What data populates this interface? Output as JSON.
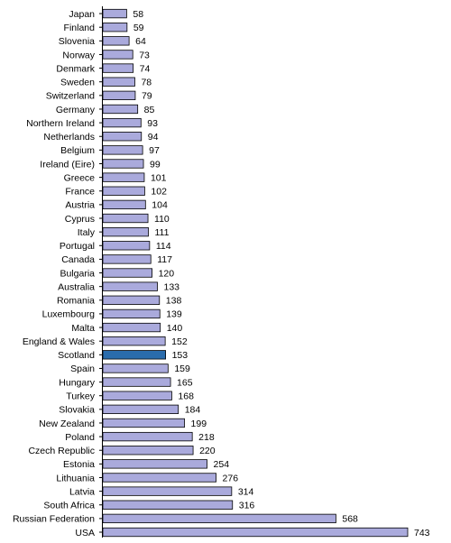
{
  "chart_data": {
    "type": "bar",
    "orientation": "horizontal",
    "categories": [
      "Japan",
      "Finland",
      "Slovenia",
      "Norway",
      "Denmark",
      "Sweden",
      "Switzerland",
      "Germany",
      "Northern Ireland",
      "Netherlands",
      "Belgium",
      "Ireland (Eire)",
      "Greece",
      "France",
      "Austria",
      "Cyprus",
      "Italy",
      "Portugal",
      "Canada",
      "Bulgaria",
      "Australia",
      "Romania",
      "Luxembourg",
      "Malta",
      "England & Wales",
      "Scotland",
      "Spain",
      "Hungary",
      "Turkey",
      "Slovakia",
      "New Zealand",
      "Poland",
      "Czech Republic",
      "Estonia",
      "Lithuania",
      "Latvia",
      "South Africa",
      "Russian Federation",
      "USA"
    ],
    "values": [
      58,
      59,
      64,
      73,
      74,
      78,
      79,
      85,
      93,
      94,
      97,
      99,
      101,
      102,
      104,
      110,
      111,
      114,
      117,
      120,
      133,
      138,
      139,
      140,
      152,
      153,
      159,
      165,
      168,
      184,
      199,
      218,
      220,
      254,
      276,
      314,
      316,
      568,
      743
    ],
    "highlight": "Scotland",
    "colors": {
      "bar": "#aaaadc",
      "highlight": "#2a6cac",
      "outline": "#000000"
    },
    "title": "",
    "xlabel": "",
    "ylabel": "",
    "xlim": [
      0,
      743
    ],
    "grid": false,
    "legend": "none"
  }
}
